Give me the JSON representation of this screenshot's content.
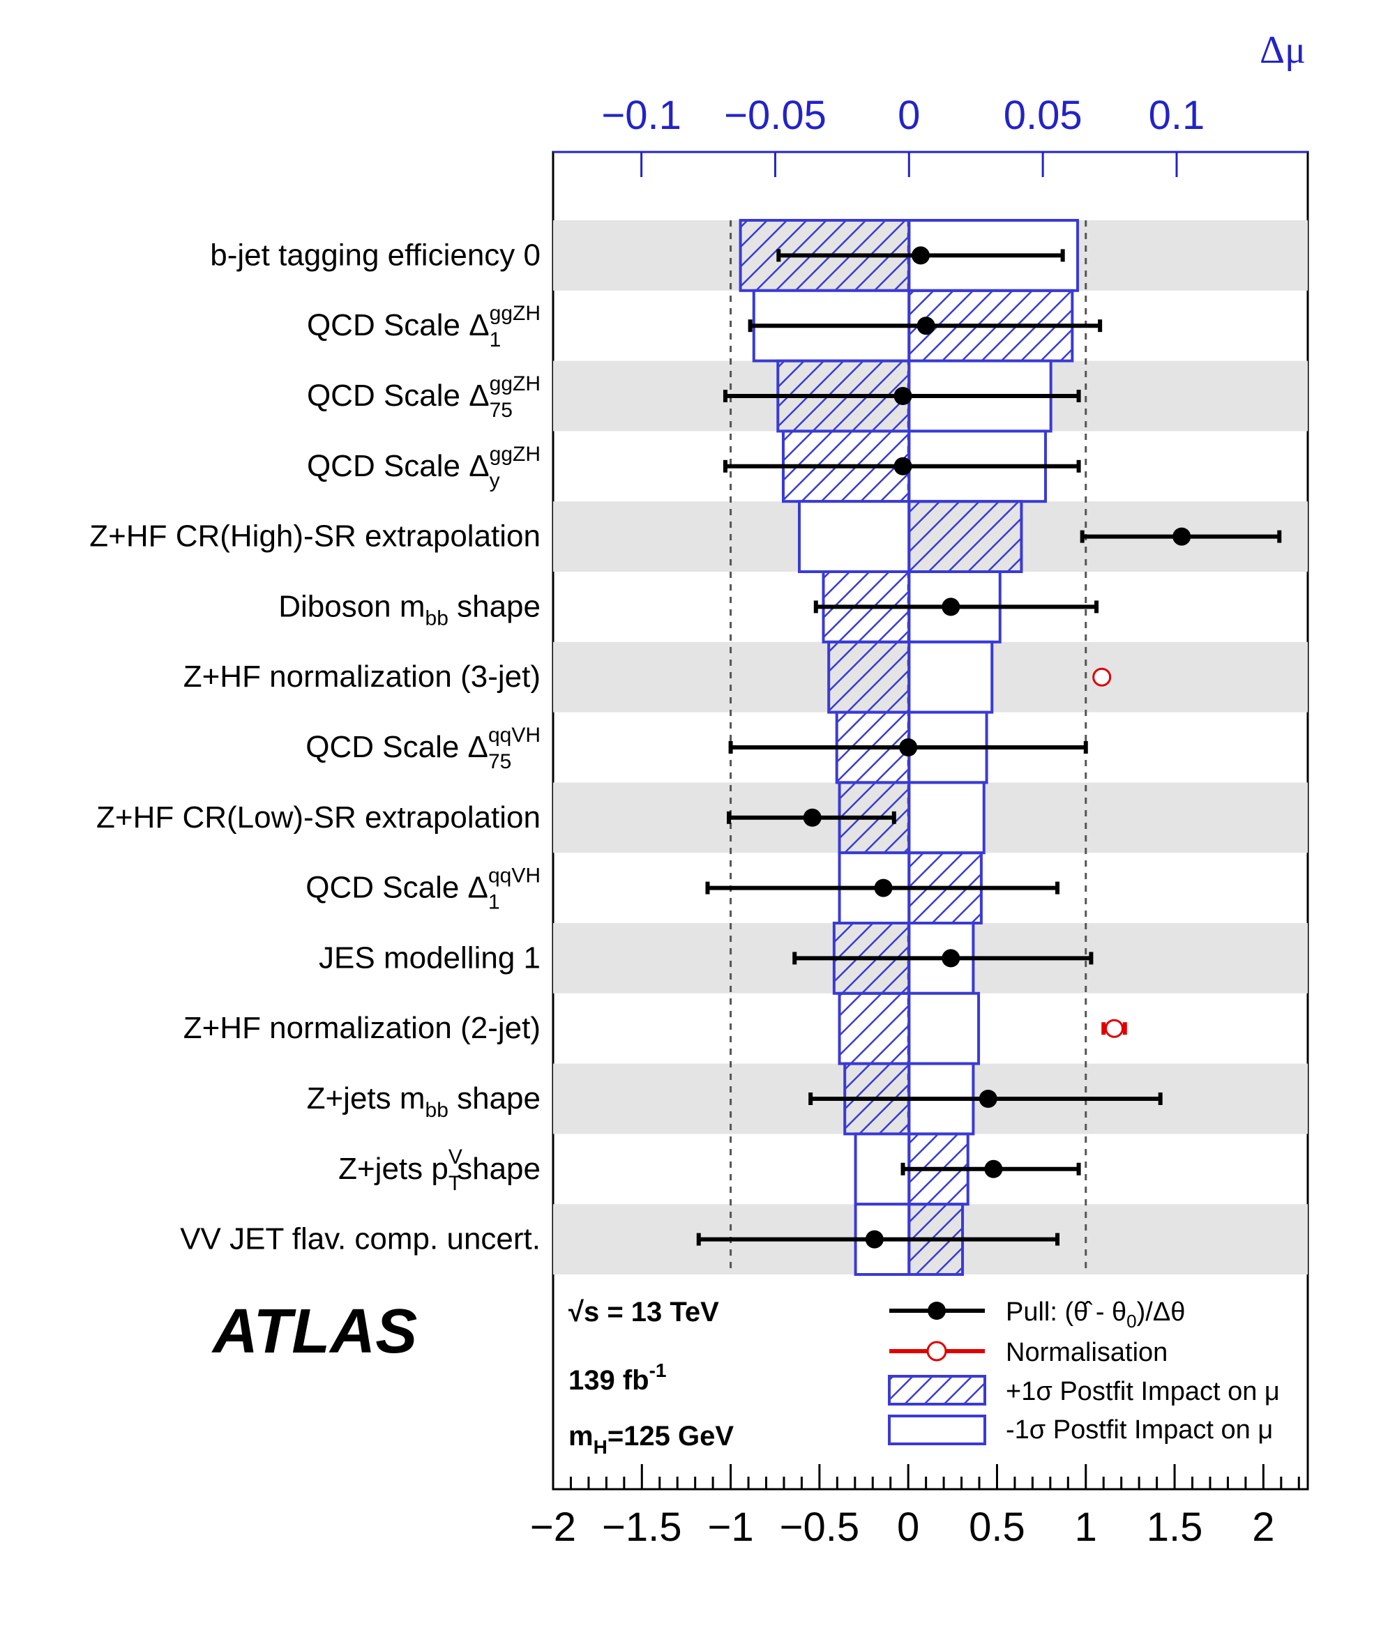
{
  "chart_data": {
    "type": "ranking",
    "title": "",
    "experiment": "ATLAS",
    "info": [
      "√s = 13 TeV",
      "139 fb",
      "m",
      "=125 GeV"
    ],
    "info_parts": {
      "sqrt": "√s = 13 TeV",
      "lumi_main": "139 fb",
      "lumi_sup": "-1",
      "mass_m": "m",
      "mass_sub": "H",
      "mass_rest": "=125 GeV"
    },
    "bottom_axis": {
      "label": "",
      "range": [
        -2,
        2.25
      ],
      "ticks": [
        -2,
        -1.5,
        -1,
        -0.5,
        0,
        0.5,
        1,
        1.5,
        2
      ],
      "tick_labels": [
        "−2",
        "−1.5",
        "−1",
        "−0.5",
        "0",
        "0.5",
        "1",
        "1.5",
        "2"
      ]
    },
    "top_axis": {
      "label": "Δμ",
      "range": [
        -0.133,
        0.149
      ],
      "ticks": [
        -0.1,
        -0.05,
        0,
        0.05,
        0.1
      ],
      "tick_labels": [
        "−0.1",
        "−0.05",
        "0",
        "0.05",
        "0.1"
      ]
    },
    "reference_lines": [
      -1,
      0,
      1
    ],
    "legend": {
      "pull": "Pull: (θ̂ - θ",
      "pull_sub": "0",
      "pull_tail": ")/Δθ",
      "norm": "Normalisation",
      "plus": "+1σ Postfit Impact on μ",
      "minus": "-1σ Postfit Impact on μ",
      "placement": "bottom-right"
    },
    "nuisance_parameters": [
      {
        "label": "b-jet tagging efficiency 0",
        "sup": "",
        "sub": "",
        "suffix": "",
        "impact_plus": -0.063,
        "impact_minus": 0.063,
        "pull": 0.07,
        "pull_lo": -0.73,
        "pull_hi": 0.87,
        "normalisation": false
      },
      {
        "label": "QCD Scale Δ",
        "sup": "ggZH",
        "sub": "1",
        "suffix": "",
        "impact_plus": 0.061,
        "impact_minus": -0.058,
        "pull": 0.1,
        "pull_lo": -0.89,
        "pull_hi": 1.08,
        "normalisation": false
      },
      {
        "label": "QCD Scale Δ",
        "sup": "ggZH",
        "sub": "75",
        "suffix": "",
        "impact_plus": -0.049,
        "impact_minus": 0.053,
        "pull": -0.03,
        "pull_lo": -1.03,
        "pull_hi": 0.96,
        "normalisation": false
      },
      {
        "label": "QCD Scale Δ",
        "sup": "ggZH",
        "sub": "y",
        "suffix": "",
        "impact_plus": -0.047,
        "impact_minus": 0.051,
        "pull": -0.03,
        "pull_lo": -1.03,
        "pull_hi": 0.96,
        "normalisation": false
      },
      {
        "label": "Z+HF CR(High)-SR extrapolation",
        "sup": "",
        "sub": "",
        "suffix": "",
        "impact_plus": 0.042,
        "impact_minus": -0.041,
        "pull": 1.54,
        "pull_lo": 0.98,
        "pull_hi": 2.09,
        "normalisation": false
      },
      {
        "label": "Diboson m",
        "sup": "",
        "sub": "bb",
        "suffix": " shape",
        "impact_plus": -0.032,
        "impact_minus": 0.034,
        "pull": 0.24,
        "pull_lo": -0.52,
        "pull_hi": 1.06,
        "normalisation": false
      },
      {
        "label": "Z+HF normalization (3-jet)",
        "sup": "",
        "sub": "",
        "suffix": "",
        "impact_plus": -0.03,
        "impact_minus": 0.031,
        "pull": 1.09,
        "pull_lo": 1.09,
        "pull_hi": 1.09,
        "normalisation": true
      },
      {
        "label": "QCD Scale Δ",
        "sup": "qqVH",
        "sub": "75",
        "suffix": "",
        "impact_plus": -0.027,
        "impact_minus": 0.029,
        "pull": 0.0,
        "pull_lo": -1.0,
        "pull_hi": 1.0,
        "normalisation": false
      },
      {
        "label": "Z+HF CR(Low)-SR extrapolation",
        "sup": "",
        "sub": "",
        "suffix": "",
        "impact_plus": -0.026,
        "impact_minus": 0.028,
        "pull": -0.54,
        "pull_lo": -1.01,
        "pull_hi": -0.08,
        "normalisation": false
      },
      {
        "label": "QCD Scale Δ",
        "sup": "qqVH",
        "sub": "1",
        "suffix": "",
        "impact_plus": 0.027,
        "impact_minus": -0.026,
        "pull": -0.14,
        "pull_lo": -1.13,
        "pull_hi": 0.84,
        "normalisation": false
      },
      {
        "label": "JES modelling 1",
        "sup": "",
        "sub": "",
        "suffix": "",
        "impact_plus": -0.028,
        "impact_minus": 0.024,
        "pull": 0.24,
        "pull_lo": -0.64,
        "pull_hi": 1.03,
        "normalisation": false
      },
      {
        "label": "Z+HF normalization (2-jet)",
        "sup": "",
        "sub": "",
        "suffix": "",
        "impact_plus": -0.026,
        "impact_minus": 0.026,
        "pull": 1.16,
        "pull_lo": 1.1,
        "pull_hi": 1.22,
        "normalisation": true
      },
      {
        "label": "Z+jets m",
        "sup": "",
        "sub": "bb",
        "suffix": " shape",
        "impact_plus": -0.024,
        "impact_minus": 0.024,
        "pull": 0.45,
        "pull_lo": -0.55,
        "pull_hi": 1.42,
        "normalisation": false
      },
      {
        "label": "Z+jets p",
        "sup": "V",
        "sub": "T",
        "suffix": " shape",
        "impact_plus": 0.022,
        "impact_minus": -0.02,
        "pull": 0.48,
        "pull_lo": -0.03,
        "pull_hi": 0.96,
        "normalisation": false
      },
      {
        "label": "VV JET flav. comp. uncert.",
        "sup": "",
        "sub": "",
        "suffix": "",
        "impact_plus": 0.02,
        "impact_minus": -0.02,
        "pull": -0.19,
        "pull_lo": -1.18,
        "pull_hi": 0.84,
        "normalisation": false
      }
    ]
  }
}
